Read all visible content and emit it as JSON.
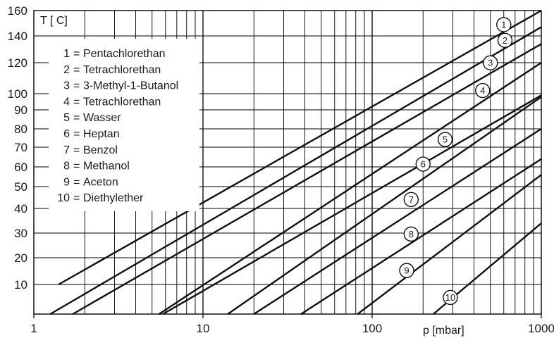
{
  "chart_data": {
    "type": "line",
    "ylabel": "T [ C]",
    "xlabel": "p [mbar]",
    "x_scale": "log",
    "xlim": [
      1,
      1000
    ],
    "ylim": [
      0,
      160
    ],
    "grid": true,
    "legend_position": "top-left",
    "x_ticks": [
      1,
      10,
      100,
      1000
    ],
    "x_tick_labels": [
      "1",
      "10",
      "100",
      "1000"
    ],
    "y_tick_labels": [
      "10",
      "20",
      "30",
      "40",
      "50",
      "60",
      "70",
      "80",
      "90",
      "100",
      "120",
      "140",
      "160"
    ],
    "y_axis_ticks_T": [
      10,
      20,
      30,
      40,
      50,
      60,
      70,
      80,
      90,
      100,
      120,
      140,
      160
    ],
    "legend": [
      {
        "number": "1",
        "sep": "=",
        "name": "Pentachlorethan"
      },
      {
        "number": "2",
        "sep": "=",
        "name": "Tetrachlorethan"
      },
      {
        "number": "3",
        "sep": "=",
        "name": "3-Methyl-1-Butanol"
      },
      {
        "number": "4",
        "sep": "=",
        "name": "Tetrachlorethan"
      },
      {
        "number": "5",
        "sep": "=",
        "name": "Wasser"
      },
      {
        "number": "6",
        "sep": "=",
        "name": "Heptan"
      },
      {
        "number": "7",
        "sep": "=",
        "name": "Benzol"
      },
      {
        "number": "8",
        "sep": "=",
        "name": "Methanol"
      },
      {
        "number": "9",
        "sep": "=",
        "name": "Aceton"
      },
      {
        "number": "10",
        "sep": "=",
        "name": "Diethylether"
      }
    ],
    "series": [
      {
        "name": "1",
        "points": [
          [
            1.4,
            10
          ],
          [
            1000,
            160
          ]
        ],
        "marker": {
          "text": "1",
          "p": 600
        }
      },
      {
        "name": "2",
        "points": [
          [
            1.25,
            0
          ],
          [
            1000,
            147
          ]
        ],
        "marker": {
          "text": "2",
          "p": 610
        }
      },
      {
        "name": "3",
        "points": [
          [
            1.7,
            0
          ],
          [
            1000,
            134
          ]
        ],
        "marker": {
          "text": "3",
          "p": 500
        }
      },
      {
        "name": "4",
        "points": [
          [
            5.5,
            0
          ],
          [
            1000,
            120
          ]
        ],
        "marker": {
          "text": "4",
          "p": 450
        }
      },
      {
        "name": "5",
        "points": [
          [
            5.8,
            0
          ],
          [
            1000,
            99
          ]
        ],
        "marker": {
          "text": "5",
          "p": 270
        }
      },
      {
        "name": "6",
        "points": [
          [
            14,
            0
          ],
          [
            1000,
            98
          ]
        ],
        "marker": {
          "text": "6",
          "p": 200
        }
      },
      {
        "name": "7",
        "points": [
          [
            20,
            0
          ],
          [
            1000,
            80
          ]
        ],
        "marker": {
          "text": "7",
          "p": 170
        }
      },
      {
        "name": "8",
        "points": [
          [
            38,
            0
          ],
          [
            1000,
            64
          ]
        ],
        "marker": {
          "text": "8",
          "p": 170
        }
      },
      {
        "name": "9",
        "points": [
          [
            82,
            0
          ],
          [
            1000,
            56
          ]
        ],
        "marker": {
          "text": "9",
          "p": 160
        }
      },
      {
        "name": "10",
        "points": [
          [
            230,
            0
          ],
          [
            1000,
            34
          ]
        ],
        "marker": {
          "text": "10",
          "p": 290
        }
      }
    ],
    "colors": {
      "line": "#111111",
      "grid": "#000000",
      "background": "#ffffff"
    }
  }
}
